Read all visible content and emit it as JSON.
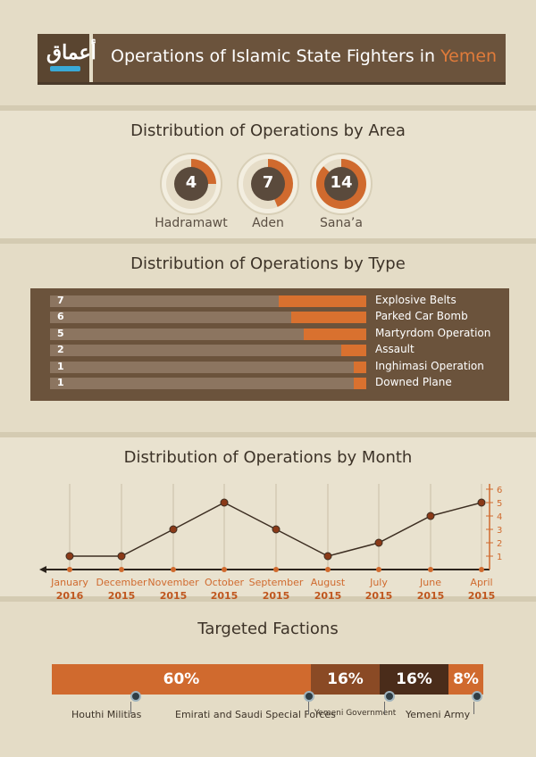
{
  "header": {
    "title_prefix": "Operations of Islamic State Fighters in ",
    "title_highlight": "Yemen",
    "logo_text": "أعماق"
  },
  "area": {
    "title": "Distribution of Operations by Area",
    "items": [
      {
        "label": "Hadramawt",
        "value": "4"
      },
      {
        "label": "Aden",
        "value": "7"
      },
      {
        "label": "Sana’a",
        "value": "14"
      }
    ]
  },
  "type": {
    "title": "Distribution of Operations by Type"
  },
  "month": {
    "title": "Distribution of Operations by Month"
  },
  "factions": {
    "title": "Targeted Factions",
    "items": [
      {
        "label": "Houthi Militias",
        "pct": "60%",
        "value": 60,
        "color": "#d06a2e"
      },
      {
        "label": "Emirati and Saudi Special Forces",
        "pct": "16%",
        "value": 16,
        "color": "#8a4a25"
      },
      {
        "label": "Yemeni Government",
        "pct": "16%",
        "value": 16,
        "color": "#4a2c1a"
      },
      {
        "label": "Yemeni Army",
        "pct": "8%",
        "value": 8,
        "color": "#d06a2e"
      }
    ]
  },
  "chart_data": [
    {
      "type": "bar",
      "title": "Distribution of Operations by Type",
      "categories": [
        "Explosive Belts",
        "Parked Car Bomb",
        "Martyrdom Operation",
        "Assault",
        "Inghimasi Operation",
        "Downed Plane"
      ],
      "values": [
        7,
        6,
        5,
        2,
        1,
        1
      ]
    },
    {
      "type": "line",
      "title": "Distribution of Operations by Month",
      "x": [
        [
          "January",
          "2016"
        ],
        [
          "December",
          "2015"
        ],
        [
          "November",
          "2015"
        ],
        [
          "October",
          "2015"
        ],
        [
          "September",
          "2015"
        ],
        [
          "August",
          "2015"
        ],
        [
          "July",
          "2015"
        ],
        [
          "June",
          "2015"
        ],
        [
          "April",
          "2015"
        ]
      ],
      "values": [
        1,
        1,
        3,
        5,
        3,
        1,
        2,
        4,
        5
      ],
      "yticks": [
        "1",
        "2",
        "3",
        "4",
        "5",
        "6"
      ],
      "ylim": [
        0,
        6
      ]
    }
  ]
}
